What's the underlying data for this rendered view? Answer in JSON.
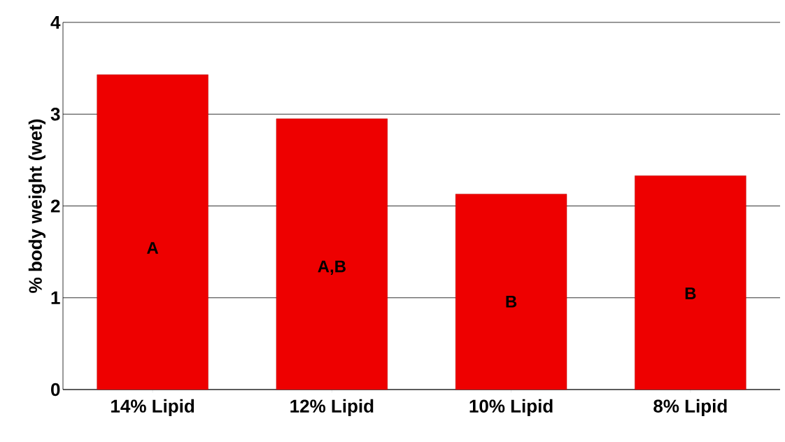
{
  "chart_data": {
    "type": "bar",
    "ylabel": "% body weight (wet)",
    "categories": [
      "14% Lipid",
      "12% Lipid",
      "10% Lipid",
      "8% Lipid"
    ],
    "values": [
      3.43,
      2.95,
      2.13,
      2.33
    ],
    "color": "#ee0000",
    "ylim": [
      0,
      4
    ],
    "yticks": [
      0,
      1,
      2,
      3,
      4
    ],
    "grid": "y",
    "annotations": [
      "A",
      "A,B",
      "B",
      "B"
    ]
  }
}
